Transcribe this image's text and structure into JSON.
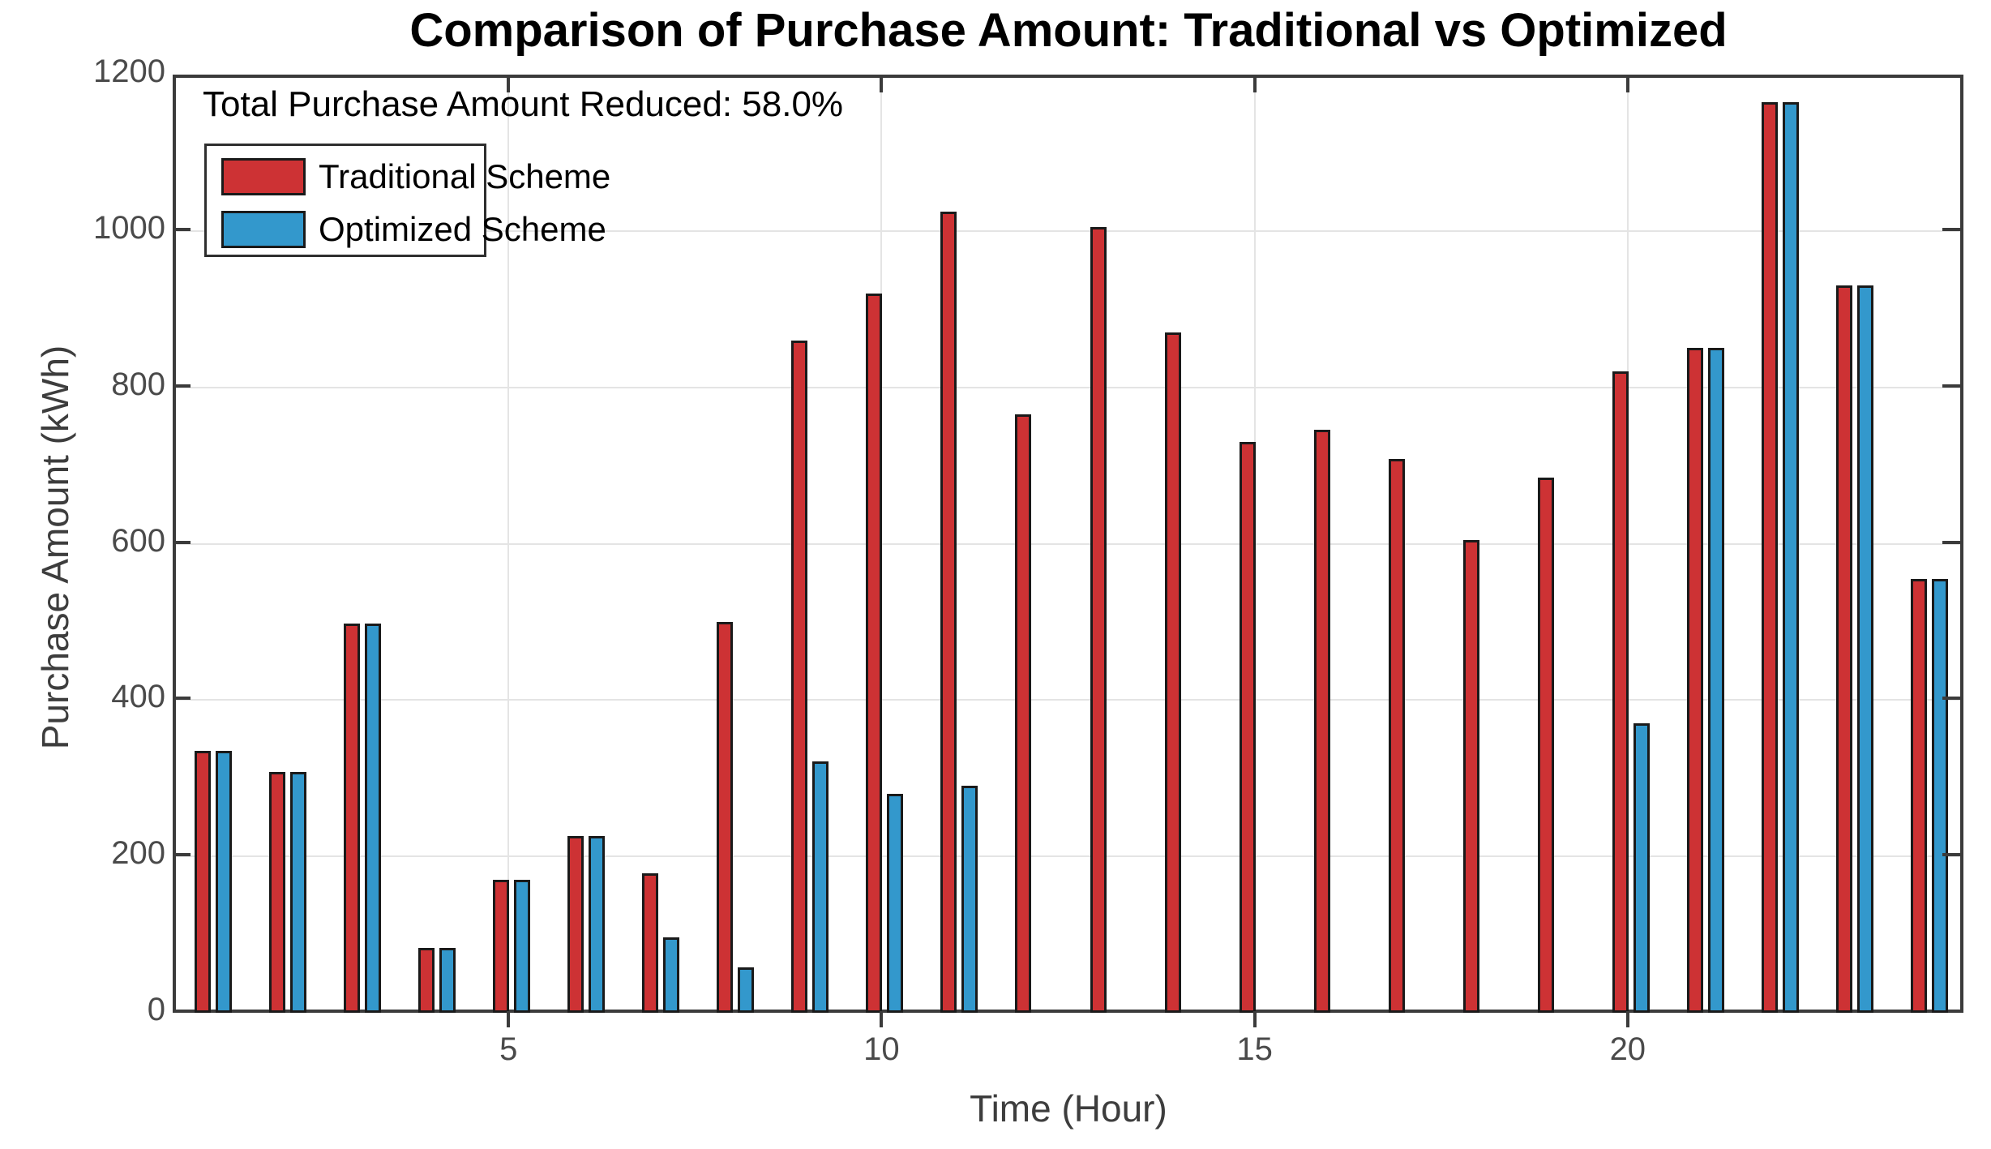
{
  "title": "Comparison of Purchase Amount: Traditional vs Optimized",
  "annotation": "Total Purchase Amount Reduced: 58.0%",
  "colors": {
    "traditional": "#CD3234",
    "optimized": "#3398CC",
    "bar_edge": "#1A1A1A",
    "axis": "#3B3B3B",
    "grid": "#E4E4E4",
    "tick_label": "#4A4A4A",
    "text": "#000000"
  },
  "chart_data": {
    "type": "bar",
    "title": "Comparison of Purchase Amount: Traditional vs Optimized",
    "xlabel": "Time (Hour)",
    "ylabel": "Purchase Amount (kWh)",
    "x": [
      1,
      2,
      3,
      4,
      5,
      6,
      7,
      8,
      9,
      10,
      11,
      12,
      13,
      14,
      15,
      16,
      17,
      18,
      19,
      20,
      21,
      22,
      23,
      24
    ],
    "series": [
      {
        "name": "Traditional Scheme",
        "color": "#CD3234",
        "values": [
          335,
          308,
          498,
          83,
          170,
          226,
          178,
          500,
          860,
          920,
          1025,
          765,
          1005,
          870,
          730,
          746,
          708,
          605,
          685,
          820,
          850,
          1165,
          930,
          555
        ]
      },
      {
        "name": "Optimized Scheme",
        "color": "#3398CC",
        "values": [
          335,
          308,
          498,
          83,
          170,
          226,
          96,
          58,
          322,
          280,
          290,
          0,
          0,
          0,
          0,
          0,
          0,
          0,
          0,
          370,
          850,
          1165,
          930,
          555
        ]
      }
    ],
    "ylim": [
      0,
      1200
    ],
    "yticks": [
      0,
      200,
      400,
      600,
      800,
      1000,
      1200
    ],
    "xticks": [
      5,
      10,
      15,
      20
    ],
    "grid": true,
    "legend_position": "top-left"
  }
}
